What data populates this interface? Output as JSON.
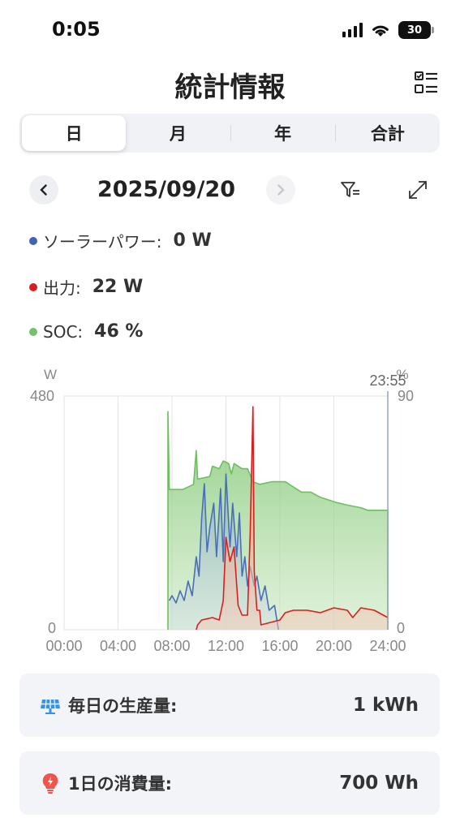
{
  "status_bar": {
    "time": "0:05",
    "battery": "30"
  },
  "header": {
    "title": "統計情報"
  },
  "tabs": [
    {
      "label": "日",
      "active": true
    },
    {
      "label": "月",
      "active": false
    },
    {
      "label": "年",
      "active": false
    },
    {
      "label": "合計",
      "active": false
    }
  ],
  "date_nav": {
    "date": "2025/09/20"
  },
  "readouts": [
    {
      "label": "ソーラーパワー:",
      "value": "0 W",
      "color": "#3f63b5"
    },
    {
      "label": "出力:",
      "value": "22 W",
      "color": "#d62020"
    },
    {
      "label": "SOC:",
      "value": "46 %",
      "color": "#74c26a"
    }
  ],
  "chart_data": {
    "type": "line",
    "left_axis": {
      "unit": "W",
      "min": 0,
      "max": 480
    },
    "right_axis": {
      "unit": "%",
      "min": 0,
      "max": 90
    },
    "cursor_label": "23:55",
    "x_ticks": [
      "00:00",
      "04:00",
      "08:00",
      "12:00",
      "16:00",
      "20:00",
      "24:00"
    ],
    "x_range_hours": [
      0,
      24
    ],
    "grid": true,
    "series": [
      {
        "axis": "right",
        "color": "#6dbf5f",
        "points": [
          [
            7.7,
            0
          ],
          [
            7.7,
            84
          ],
          [
            7.8,
            54
          ],
          [
            8.8,
            54
          ],
          [
            9.6,
            56
          ],
          [
            9.8,
            69
          ],
          [
            9.9,
            58
          ],
          [
            10.8,
            59
          ],
          [
            11.0,
            63
          ],
          [
            11.5,
            62
          ],
          [
            11.8,
            65
          ],
          [
            12.2,
            64
          ],
          [
            12.4,
            60
          ],
          [
            12.6,
            64
          ],
          [
            13.2,
            62
          ],
          [
            13.6,
            62
          ],
          [
            14.0,
            57
          ],
          [
            14.5,
            56
          ],
          [
            15.4,
            57
          ],
          [
            16.4,
            57
          ],
          [
            17.0,
            55
          ],
          [
            17.6,
            53
          ],
          [
            18.3,
            53
          ],
          [
            19.0,
            51
          ],
          [
            20.2,
            49
          ],
          [
            21.0,
            48
          ],
          [
            22.0,
            47
          ],
          [
            22.5,
            46
          ],
          [
            24.0,
            46
          ],
          [
            24.0,
            0
          ]
        ]
      },
      {
        "axis": "left",
        "color": "#4a6fb5",
        "points": [
          [
            7.8,
            60
          ],
          [
            8.0,
            70
          ],
          [
            8.3,
            55
          ],
          [
            8.6,
            80
          ],
          [
            8.9,
            60
          ],
          [
            9.2,
            100
          ],
          [
            9.5,
            70
          ],
          [
            9.8,
            150
          ],
          [
            10.0,
            110
          ],
          [
            10.2,
            230
          ],
          [
            10.4,
            300
          ],
          [
            10.6,
            160
          ],
          [
            10.8,
            210
          ],
          [
            11.1,
            260
          ],
          [
            11.3,
            150
          ],
          [
            11.6,
            290
          ],
          [
            11.8,
            140
          ],
          [
            12.0,
            320
          ],
          [
            12.3,
            170
          ],
          [
            12.5,
            260
          ],
          [
            12.8,
            150
          ],
          [
            13.0,
            240
          ],
          [
            13.2,
            110
          ],
          [
            13.4,
            150
          ],
          [
            13.6,
            90
          ],
          [
            13.8,
            130
          ],
          [
            14.1,
            90
          ],
          [
            14.3,
            110
          ],
          [
            14.6,
            60
          ],
          [
            14.9,
            90
          ],
          [
            15.2,
            40
          ],
          [
            15.6,
            50
          ],
          [
            15.9,
            0
          ]
        ]
      },
      {
        "axis": "left",
        "color": "#d62020",
        "points": [
          [
            9.8,
            0
          ],
          [
            9.9,
            10
          ],
          [
            10.2,
            20
          ],
          [
            11.0,
            25
          ],
          [
            11.5,
            20
          ],
          [
            11.8,
            60
          ],
          [
            12.0,
            190
          ],
          [
            12.3,
            140
          ],
          [
            12.6,
            170
          ],
          [
            12.9,
            50
          ],
          [
            13.2,
            30
          ],
          [
            13.6,
            30
          ],
          [
            13.8,
            200
          ],
          [
            14.0,
            458
          ],
          [
            14.1,
            120
          ],
          [
            14.3,
            40
          ],
          [
            14.5,
            40
          ],
          [
            14.6,
            10
          ],
          [
            16.0,
            20
          ],
          [
            16.4,
            35
          ],
          [
            17.0,
            40
          ],
          [
            18.0,
            40
          ],
          [
            19.0,
            35
          ],
          [
            20.0,
            45
          ],
          [
            21.0,
            40
          ],
          [
            21.4,
            25
          ],
          [
            22.0,
            45
          ],
          [
            23.0,
            40
          ],
          [
            24.0,
            25
          ]
        ]
      }
    ]
  },
  "cards": [
    {
      "label": "毎日の生産量:",
      "value": "1 kWh",
      "icon": "solar-panel-icon"
    },
    {
      "label": "1日の消費量:",
      "value": "700 Wh",
      "icon": "lightbulb-icon"
    }
  ]
}
